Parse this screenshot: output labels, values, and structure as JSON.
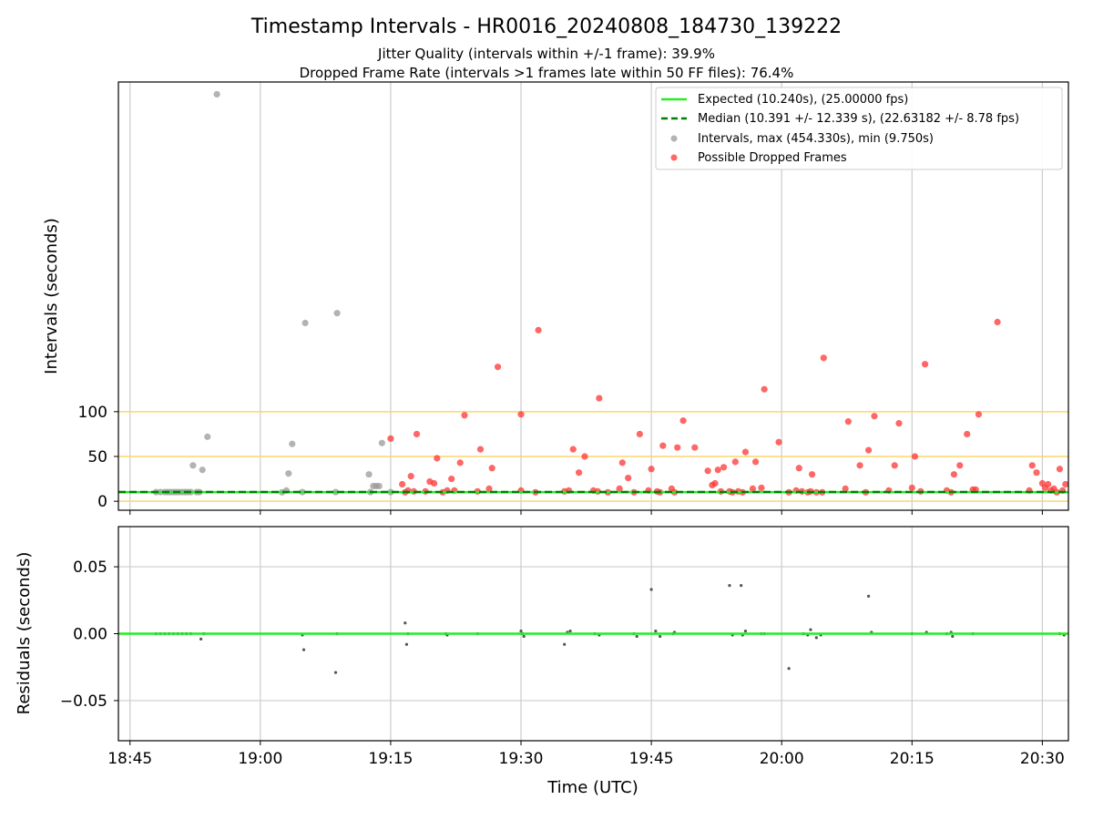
{
  "figure": {
    "title": "Timestamp Intervals - HR0016_20240808_184730_139222",
    "subtitle_line1": "Jitter Quality (intervals within +/-1 frame): 39.9%",
    "subtitle_line2": "Dropped Frame Rate (intervals >1 frames late within 50 FF files): 76.4%"
  },
  "colors": {
    "expected": "#22ee22",
    "median": "#008000",
    "intervals": "#999999",
    "dropped": "#ff3333",
    "threshold": "#ffd56b",
    "grid": "#cccccc",
    "residual": "#555555"
  },
  "chart_data": [
    {
      "type": "scatter",
      "ylabel": "Intervals (seconds)",
      "x_unit": "minutes of day (UTC)",
      "xlim": [
        "18:43:40",
        "20:33:00"
      ],
      "ylim": [
        -10,
        468
      ],
      "y_ticks": [
        0,
        50,
        100
      ],
      "x_ticks": [
        "18:45",
        "19:00",
        "19:15",
        "19:30",
        "19:45",
        "20:00",
        "20:15",
        "20:30"
      ],
      "threshold_lines": [
        0,
        50,
        100
      ],
      "grid": "vertical",
      "legend": {
        "placement": "top-right",
        "expected": "Expected (10.240s), (25.00000 fps)",
        "median": "Median (10.391 +/- 12.339 s), (22.63182 +/- 8.78 fps)",
        "intervals": "Intervals, max (454.330s), min (9.750s)",
        "dropped": "Possible Dropped Frames"
      },
      "expected_interval": 10.24,
      "median_interval": 10.391,
      "series": [
        {
          "name": "Intervals, max (454.330s), min (9.750s)",
          "points": [
            [
              "18:48:00",
              10.2
            ],
            [
              "18:48:30",
              10.2
            ],
            [
              "18:49:00",
              10.3
            ],
            [
              "18:49:20",
              10.2
            ],
            [
              "18:49:40",
              10.2
            ],
            [
              "18:50:00",
              10.3
            ],
            [
              "18:50:20",
              10.2
            ],
            [
              "18:50:40",
              10.2
            ],
            [
              "18:51:00",
              10.3
            ],
            [
              "18:51:20",
              10.2
            ],
            [
              "18:51:40",
              10.2
            ],
            [
              "18:52:00",
              10.2
            ],
            [
              "18:52:40",
              10.2
            ],
            [
              "18:53:00",
              10.2
            ],
            [
              "18:52:15",
              40
            ],
            [
              "18:53:20",
              35
            ],
            [
              "18:53:55",
              72
            ],
            [
              "18:55:00",
              454.3
            ],
            [
              "19:02:30",
              10
            ],
            [
              "19:03:00",
              12
            ],
            [
              "19:03:15",
              31
            ],
            [
              "19:03:40",
              64
            ],
            [
              "19:04:50",
              10.3
            ],
            [
              "19:05:10",
              199
            ],
            [
              "19:08:40",
              10.2
            ],
            [
              "19:08:50",
              210
            ],
            [
              "19:12:30",
              30
            ],
            [
              "19:12:40",
              10.3
            ],
            [
              "19:13:00",
              17
            ],
            [
              "19:13:20",
              17
            ],
            [
              "19:13:40",
              17
            ],
            [
              "19:14:00",
              65
            ],
            [
              "19:15:00",
              10.2
            ]
          ]
        },
        {
          "name": "Possible Dropped Frames",
          "points": [
            [
              "19:15:00",
              70
            ],
            [
              "19:16:20",
              19
            ],
            [
              "19:16:40",
              10
            ],
            [
              "19:17:00",
              12
            ],
            [
              "19:17:20",
              28
            ],
            [
              "19:17:40",
              11
            ],
            [
              "19:18:00",
              75
            ],
            [
              "19:19:00",
              11
            ],
            [
              "19:19:30",
              22
            ],
            [
              "19:20:00",
              20
            ],
            [
              "19:20:20",
              48
            ],
            [
              "19:21:00",
              10
            ],
            [
              "19:21:30",
              12
            ],
            [
              "19:22:00",
              25
            ],
            [
              "19:22:20",
              12
            ],
            [
              "19:23:00",
              43
            ],
            [
              "19:23:30",
              96
            ],
            [
              "19:25:00",
              11
            ],
            [
              "19:25:20",
              58
            ],
            [
              "19:26:20",
              14
            ],
            [
              "19:26:40",
              37
            ],
            [
              "19:27:20",
              150
            ],
            [
              "19:30:00",
              97
            ],
            [
              "19:30:00",
              12
            ],
            [
              "19:31:40",
              10
            ],
            [
              "19:32:00",
              191
            ],
            [
              "19:35:00",
              11
            ],
            [
              "19:35:30",
              12
            ],
            [
              "19:36:00",
              58
            ],
            [
              "19:36:40",
              32
            ],
            [
              "19:37:20",
              50
            ],
            [
              "19:38:20",
              12
            ],
            [
              "19:38:50",
              11
            ],
            [
              "19:39:00",
              115
            ],
            [
              "19:40:00",
              10
            ],
            [
              "19:41:20",
              14
            ],
            [
              "19:41:40",
              43
            ],
            [
              "19:42:20",
              26
            ],
            [
              "19:43:00",
              10
            ],
            [
              "19:43:40",
              75
            ],
            [
              "19:44:40",
              12
            ],
            [
              "19:45:00",
              36
            ],
            [
              "19:45:40",
              11
            ],
            [
              "19:46:00",
              10
            ],
            [
              "19:46:20",
              62
            ],
            [
              "19:47:20",
              14
            ],
            [
              "19:47:40",
              10
            ],
            [
              "19:48:00",
              60
            ],
            [
              "19:48:40",
              90
            ],
            [
              "19:50:00",
              60
            ],
            [
              "19:51:30",
              34
            ],
            [
              "19:52:00",
              18
            ],
            [
              "19:52:20",
              20
            ],
            [
              "19:52:40",
              35
            ],
            [
              "19:53:00",
              11
            ],
            [
              "19:53:20",
              38
            ],
            [
              "19:54:00",
              11
            ],
            [
              "19:54:20",
              10
            ],
            [
              "19:54:40",
              44
            ],
            [
              "19:55:00",
              11
            ],
            [
              "19:55:30",
              10
            ],
            [
              "19:55:50",
              55
            ],
            [
              "19:56:40",
              14
            ],
            [
              "19:57:00",
              44
            ],
            [
              "19:57:40",
              15
            ],
            [
              "19:58:00",
              125
            ],
            [
              "19:59:40",
              66
            ],
            [
              "20:00:50",
              10
            ],
            [
              "20:01:40",
              12
            ],
            [
              "20:02:00",
              37
            ],
            [
              "20:02:20",
              11
            ],
            [
              "20:03:00",
              10
            ],
            [
              "20:03:20",
              11
            ],
            [
              "20:03:30",
              30
            ],
            [
              "20:04:00",
              10
            ],
            [
              "20:04:40",
              10
            ],
            [
              "20:04:50",
              160
            ],
            [
              "20:07:20",
              14
            ],
            [
              "20:07:40",
              89
            ],
            [
              "20:09:00",
              40
            ],
            [
              "20:09:40",
              10
            ],
            [
              "20:10:00",
              57
            ],
            [
              "20:10:40",
              95
            ],
            [
              "20:12:20",
              12
            ],
            [
              "20:13:00",
              40
            ],
            [
              "20:13:30",
              87
            ],
            [
              "20:15:00",
              15
            ],
            [
              "20:15:20",
              50
            ],
            [
              "20:16:00",
              11
            ],
            [
              "20:16:30",
              153
            ],
            [
              "20:19:00",
              12
            ],
            [
              "20:19:30",
              10
            ],
            [
              "20:19:50",
              30
            ],
            [
              "20:20:30",
              40
            ],
            [
              "20:21:20",
              75
            ],
            [
              "20:22:00",
              13
            ],
            [
              "20:22:20",
              13
            ],
            [
              "20:22:40",
              97
            ],
            [
              "20:24:50",
              200
            ],
            [
              "20:28:30",
              12
            ],
            [
              "20:28:50",
              40
            ],
            [
              "20:29:20",
              32
            ],
            [
              "20:30:00",
              20
            ],
            [
              "20:30:20",
              15
            ],
            [
              "20:30:40",
              19
            ],
            [
              "20:31:00",
              12
            ],
            [
              "20:31:20",
              14
            ],
            [
              "20:31:40",
              10
            ],
            [
              "20:32:00",
              36
            ],
            [
              "20:32:20",
              12
            ],
            [
              "20:32:40",
              19
            ]
          ]
        }
      ]
    },
    {
      "type": "scatter",
      "ylabel": "Residuals (seconds)",
      "xlabel": "Time (UTC)",
      "xlim": [
        "18:43:40",
        "20:33:00"
      ],
      "ylim": [
        -0.08,
        0.08
      ],
      "y_ticks": [
        0.05,
        0.0,
        -0.05
      ],
      "y_tick_labels": [
        "0.05",
        "0.00",
        "−0.05"
      ],
      "x_tick_labels": [
        "18:45",
        "19:00",
        "19:15",
        "19:30",
        "19:45",
        "20:00",
        "20:15",
        "20:30"
      ],
      "grid": "both",
      "points": [
        [
          "18:48:00",
          0
        ],
        [
          "18:48:30",
          0
        ],
        [
          "18:49:00",
          0
        ],
        [
          "18:49:30",
          0
        ],
        [
          "18:50:00",
          0
        ],
        [
          "18:50:30",
          0
        ],
        [
          "18:51:00",
          0
        ],
        [
          "18:51:30",
          0
        ],
        [
          "18:52:00",
          0
        ],
        [
          "18:53:10",
          -0.004
        ],
        [
          "18:53:30",
          0
        ],
        [
          "19:04:50",
          -0.001
        ],
        [
          "19:05:00",
          -0.012
        ],
        [
          "19:08:40",
          -0.029
        ],
        [
          "19:08:50",
          0
        ],
        [
          "19:16:40",
          0.008
        ],
        [
          "19:16:50",
          -0.008
        ],
        [
          "19:17:00",
          0
        ],
        [
          "19:21:20",
          0
        ],
        [
          "19:21:30",
          -0.001
        ],
        [
          "19:25:00",
          0
        ],
        [
          "19:30:00",
          0.002
        ],
        [
          "19:30:10",
          0
        ],
        [
          "19:30:20",
          -0.002
        ],
        [
          "19:35:00",
          -0.008
        ],
        [
          "19:35:20",
          0.001
        ],
        [
          "19:35:40",
          0.002
        ],
        [
          "19:38:30",
          0
        ],
        [
          "19:39:00",
          -0.001
        ],
        [
          "19:43:00",
          0
        ],
        [
          "19:43:20",
          -0.002
        ],
        [
          "19:45:00",
          0.033
        ],
        [
          "19:45:30",
          0.002
        ],
        [
          "19:46:00",
          -0.002
        ],
        [
          "19:47:30",
          0
        ],
        [
          "19:47:40",
          0.001
        ],
        [
          "19:54:00",
          0.036
        ],
        [
          "19:54:20",
          -0.001
        ],
        [
          "19:55:20",
          0.036
        ],
        [
          "19:55:30",
          -0.001
        ],
        [
          "19:55:50",
          0.002
        ],
        [
          "19:57:40",
          0
        ],
        [
          "19:58:00",
          0
        ],
        [
          "20:00:50",
          -0.026
        ],
        [
          "20:02:30",
          0
        ],
        [
          "20:03:00",
          -0.001
        ],
        [
          "20:03:20",
          0.003
        ],
        [
          "20:04:00",
          -0.003
        ],
        [
          "20:04:30",
          -0.001
        ],
        [
          "20:10:00",
          0.028
        ],
        [
          "20:10:20",
          0.001
        ],
        [
          "20:15:00",
          0
        ],
        [
          "20:16:40",
          0.001
        ],
        [
          "20:19:00",
          0
        ],
        [
          "20:19:30",
          0.001
        ],
        [
          "20:19:40",
          -0.002
        ],
        [
          "20:22:00",
          0
        ],
        [
          "20:32:00",
          0
        ],
        [
          "20:32:30",
          -0.001
        ]
      ]
    }
  ]
}
